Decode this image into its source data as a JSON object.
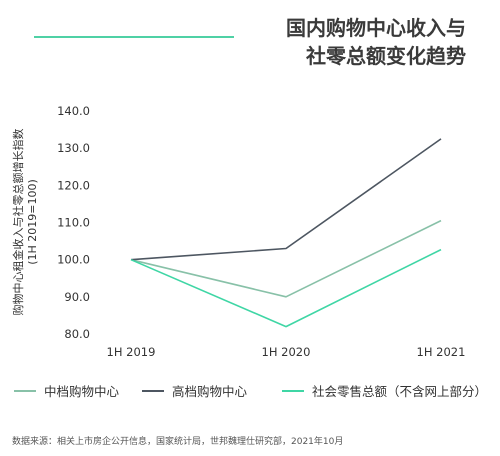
{
  "header": {
    "title_line1": "国内购物中心收入与",
    "title_line2": "社零总额变化趋势",
    "accent_color": "#4fd1a5"
  },
  "chart_data": {
    "type": "line",
    "categories": [
      "1H 2019",
      "1H 2020",
      "1H 2021"
    ],
    "series": [
      {
        "name": "中档购物中心",
        "values": [
          100.0,
          90.0,
          110.5
        ],
        "color": "#88c1a8"
      },
      {
        "name": "高档购物中心",
        "values": [
          100.0,
          103.0,
          132.5
        ],
        "color": "#4d5661"
      },
      {
        "name": "社会零售总额（不含网上部分）",
        "values": [
          100.0,
          82.0,
          102.7
        ],
        "color": "#3fd6a5"
      }
    ],
    "ylabel_line1": "购物中心租金收入与社零总额增长指数",
    "ylabel_line2": "(1H 2019=100)",
    "yticks": [
      "140.0",
      "130.0",
      "120.0",
      "110.0",
      "100.0",
      "90.0",
      "80.0"
    ],
    "ytick_values": [
      140,
      130,
      120,
      110,
      100,
      90,
      80
    ],
    "ylim": [
      80,
      140
    ],
    "grid": false,
    "legend_position": "bottom"
  },
  "footer": {
    "source": "数据来源：相关上市房企公开信息，国家统计局，世邦魏理仕研究部，2021年10月"
  }
}
